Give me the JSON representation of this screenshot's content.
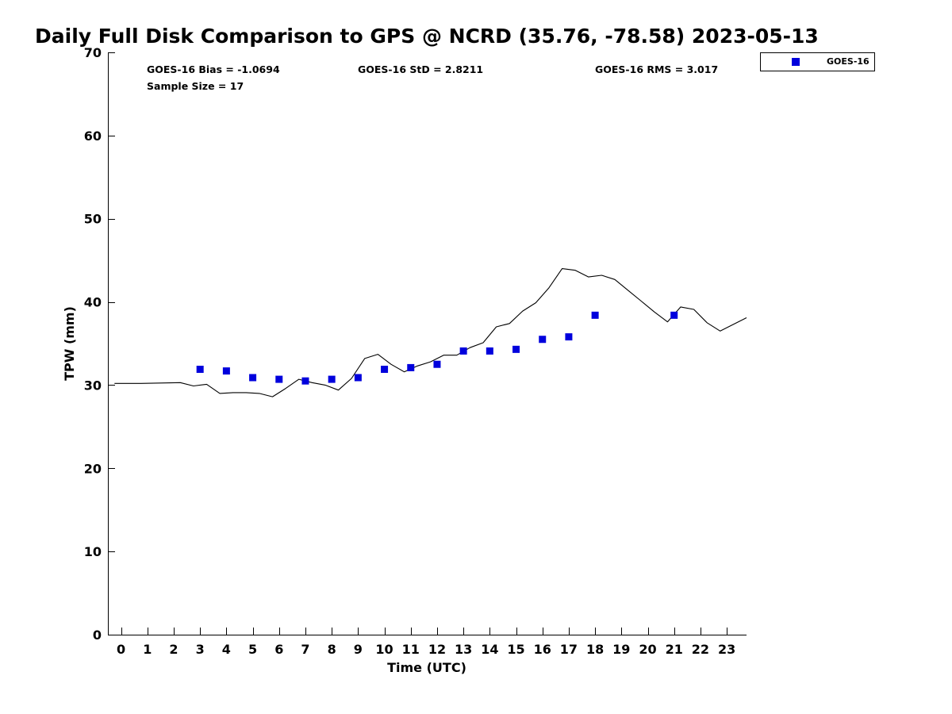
{
  "chart_data": {
    "type": "line+scatter",
    "title": "Daily Full Disk Comparison to GPS @ NCRD (35.76, -78.58) 2023-05-13",
    "xlabel": "Time (UTC)",
    "ylabel": "TPW (mm)",
    "xlim": [
      -0.5,
      23.75
    ],
    "ylim": [
      0,
      70
    ],
    "x_ticks": [
      0,
      1,
      2,
      3,
      4,
      5,
      6,
      7,
      8,
      9,
      10,
      11,
      12,
      13,
      14,
      15,
      16,
      17,
      18,
      19,
      20,
      21,
      22,
      23
    ],
    "x_tick_labels": [
      "0",
      "1",
      "2",
      "3",
      "4",
      "5",
      "6",
      "7",
      "8",
      "9",
      "10",
      "11",
      "12",
      "13",
      "14",
      "15",
      "16",
      "17",
      "18",
      "19",
      "20",
      "21",
      "22",
      "23"
    ],
    "y_ticks": [
      0,
      10,
      20,
      30,
      40,
      50,
      60,
      70
    ],
    "y_tick_labels": [
      "0",
      "10",
      "20",
      "30",
      "40",
      "50",
      "60",
      "70"
    ],
    "stats": {
      "bias": "GOES-16 Bias = -1.0694",
      "std": "GOES-16 StD = 2.8211",
      "rms": "GOES-16 RMS = 3.017",
      "sample_size": "Sample Size = 17"
    },
    "legend": {
      "position": "top-right",
      "entries": [
        {
          "name": "GOES-16",
          "marker": "square",
          "color": "#0000dd"
        }
      ]
    },
    "series": [
      {
        "name": "GPS",
        "kind": "line",
        "color": "#000000",
        "x": [
          -0.25,
          0.75,
          2.25,
          2.75,
          3.25,
          3.75,
          4.25,
          4.75,
          5.25,
          5.75,
          6.25,
          6.75,
          7.25,
          7.75,
          8.25,
          8.75,
          9.25,
          9.75,
          10.25,
          10.75,
          11.25,
          11.75,
          12.25,
          12.75,
          13.25,
          13.75,
          14.25,
          14.75,
          15.25,
          15.75,
          16.25,
          16.75,
          17.25,
          17.75,
          18.25,
          18.75,
          19.25,
          19.75,
          20.25,
          20.75,
          21.25,
          21.75,
          22.25,
          22.75,
          23.25,
          23.75
        ],
        "y": [
          30.2,
          30.2,
          30.3,
          29.9,
          30.1,
          29.0,
          29.1,
          29.1,
          29.0,
          28.6,
          29.6,
          30.7,
          30.3,
          30.0,
          29.4,
          30.8,
          33.2,
          33.7,
          32.5,
          31.6,
          32.3,
          32.8,
          33.6,
          33.6,
          34.5,
          35.1,
          37.0,
          37.4,
          38.9,
          39.9,
          41.7,
          44.0,
          43.8,
          43.0,
          43.2,
          42.7,
          41.4,
          40.1,
          38.8,
          37.6,
          39.4,
          39.1,
          37.5,
          36.5,
          37.3,
          38.1
        ]
      },
      {
        "name": "GOES-16",
        "kind": "scatter",
        "color": "#0000dd",
        "x": [
          3,
          4,
          5,
          6,
          7,
          8,
          9,
          10,
          11,
          12,
          13,
          14,
          15,
          16,
          17,
          18,
          21
        ],
        "y": [
          31.9,
          31.7,
          30.9,
          30.7,
          30.5,
          30.7,
          30.9,
          31.9,
          32.1,
          32.5,
          34.1,
          34.1,
          34.3,
          35.5,
          35.8,
          38.4,
          38.4
        ]
      }
    ]
  }
}
